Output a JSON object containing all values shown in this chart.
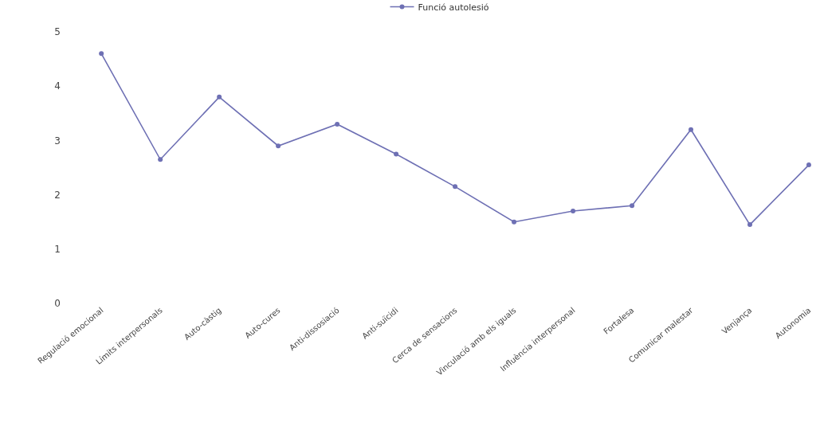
{
  "chart_data": {
    "type": "line",
    "categories": [
      "Regulació emocional",
      "Límits interpersonals",
      "Auto-càstig",
      "Auto-cures",
      "Anti-dissosiació",
      "Anti-suïcidi",
      "Cerca de sensacions",
      "Vinculació amb els iguals",
      "Influència interpersonal",
      "Fortalesa",
      "Comunicar malestar",
      "Venjança",
      "Autonomia"
    ],
    "series": [
      {
        "name": "Funció autolesió",
        "color": "#6e70b4",
        "values": [
          4.6,
          2.65,
          3.8,
          2.9,
          3.3,
          2.75,
          2.15,
          1.5,
          1.7,
          1.8,
          3.2,
          1.45,
          2.55
        ]
      }
    ],
    "ylim": [
      0,
      5
    ],
    "yticks": [
      0,
      1,
      2,
      3,
      4,
      5
    ],
    "grid": false,
    "legend": "top",
    "marker": "circle",
    "line_style": "solid"
  }
}
